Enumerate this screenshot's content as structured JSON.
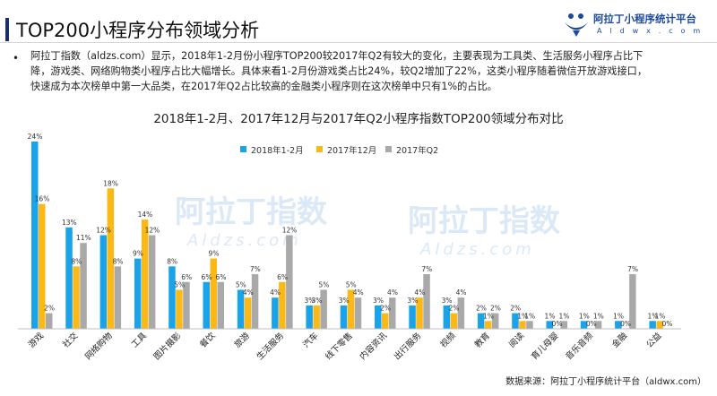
{
  "header": {
    "title": "TOP200小程序分布领域分析",
    "logo_name": "阿拉丁小程序统计平台",
    "logo_url": "A l d w x . c o m",
    "logo_icon": "aladdin-lamp-icon"
  },
  "summary": {
    "bullet": "•",
    "text": "阿拉丁指数（aldzs.com）显示，2018年1-2月份小程序TOP200较2017年Q2有较大的变化，主要表现为工具类、生活服务小程序占比下降，游戏类、网络购物类小程序占比大幅增长。具体来看1-2月份游戏类占比24%，较Q2增加了22%，这类小程序随着微信开放游戏接口，快速成为本次榜单中第一大品类，在2017年Q2占比较高的金融类小程序则在这次榜单中只有1%的占比。"
  },
  "chart_data": {
    "type": "bar",
    "title": "2018年1-2月、2017年12月与2017年Q2小程序指数TOP200领域分布对比",
    "xlabel": "",
    "ylabel": "",
    "ylim": [
      0,
      24
    ],
    "grid": false,
    "legend_position": "top-left",
    "value_suffix": "%",
    "categories": [
      "游戏",
      "社交",
      "网络购物",
      "工具",
      "图片摄影",
      "餐饮",
      "旅游",
      "生活服务",
      "汽车",
      "线下零售",
      "内容资讯",
      "出行服务",
      "视频",
      "教育",
      "阅读",
      "育儿母婴",
      "音乐音频",
      "金融",
      "公益"
    ],
    "series": [
      {
        "name": "2018年1-2月",
        "color": "#1aa3e8",
        "values": [
          24,
          13,
          12,
          9,
          8,
          6,
          5,
          4,
          3,
          3,
          3,
          3,
          3,
          2,
          2,
          1,
          1,
          1,
          1
        ]
      },
      {
        "name": "2017年12月",
        "color": "#fbb917",
        "values": [
          16,
          8,
          18,
          14,
          5,
          9,
          4,
          6,
          3,
          5,
          2,
          4,
          2,
          1,
          1,
          0,
          0,
          0,
          1
        ]
      },
      {
        "name": "2017年Q2",
        "color": "#a9a9a9",
        "values": [
          2,
          11,
          8,
          12,
          6,
          6,
          7,
          12,
          5,
          4,
          4,
          7,
          4,
          2,
          1,
          1,
          1,
          7,
          0
        ]
      }
    ]
  },
  "watermark": {
    "name": "阿拉丁指数",
    "url": "Aldzs.com"
  },
  "footer": {
    "source": "数据来源：阿拉丁小程序统计平台（aldwx.com）"
  }
}
